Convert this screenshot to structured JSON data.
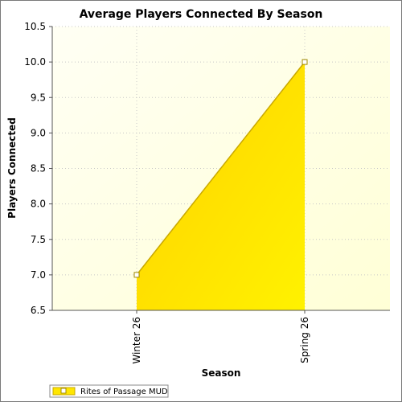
{
  "chart_data": {
    "type": "area",
    "title": "Average Players Connected By Season",
    "xlabel": "Season",
    "ylabel": "Players Connected",
    "categories": [
      "Winter 26",
      "Spring 26"
    ],
    "series": [
      {
        "name": "Rites of Passage MUD",
        "values": [
          7.0,
          10.0
        ]
      }
    ],
    "ylim": [
      6.5,
      10.5
    ],
    "yticks": [
      "6.5",
      "7.0",
      "7.5",
      "8.0",
      "8.5",
      "9.0",
      "9.5",
      "10.0",
      "10.5"
    ],
    "grid": true,
    "legend_position": "bottom-left",
    "colors": {
      "fill": "#ffe600",
      "line": "#c9a800",
      "plot_background": "#fffff0",
      "grid": "#c8c8c8"
    }
  }
}
